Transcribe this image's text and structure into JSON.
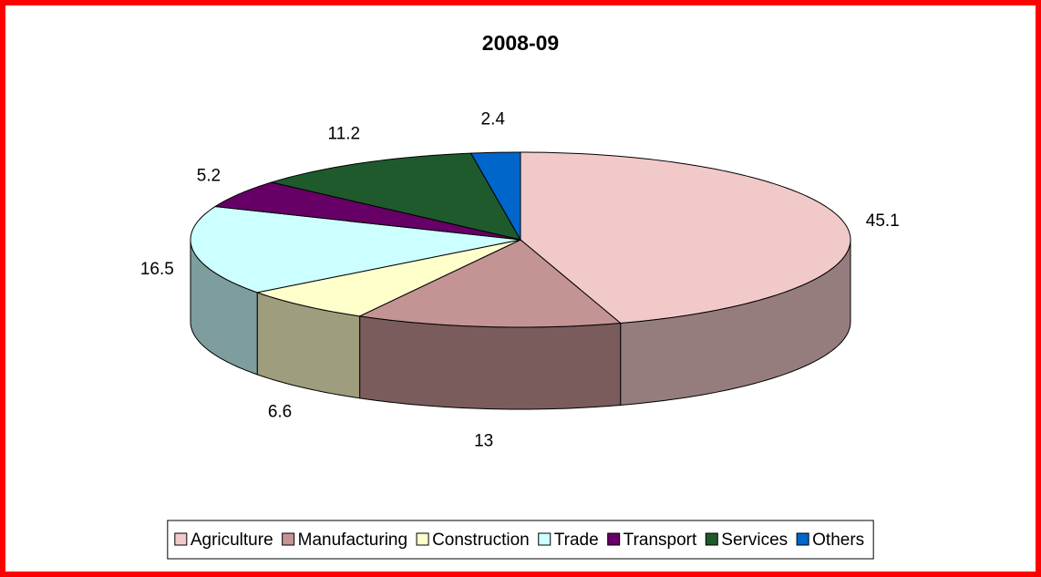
{
  "chart_data": {
    "type": "pie",
    "title": "2008-09",
    "categories": [
      "Agriculture",
      "Manufacturing",
      "Construction",
      "Trade",
      "Transport",
      "Services",
      "Others"
    ],
    "values": [
      45.1,
      13,
      6.6,
      16.5,
      5.2,
      11.2,
      2.4
    ],
    "colors": [
      "#f2c9c9",
      "#c49494",
      "#ffffcc",
      "#ccffff",
      "#660066",
      "#1f5a2c",
      "#0066cc"
    ],
    "legend": "bottom"
  }
}
